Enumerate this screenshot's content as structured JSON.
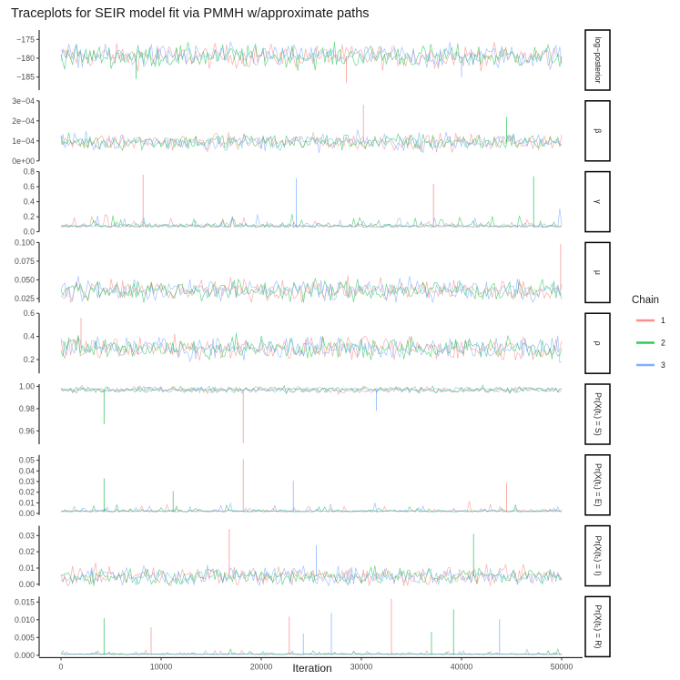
{
  "chart_data": {
    "type": "line",
    "title": "Traceplots for SEIR model fit via PMMH w/approximate paths",
    "xlabel": "Iteration",
    "x_range": [
      0,
      50000
    ],
    "x_ticks": [
      "0",
      "10000",
      "20000",
      "30000",
      "40000",
      "50000"
    ],
    "x_tick_values": [
      0,
      10000,
      20000,
      30000,
      40000,
      50000
    ],
    "grid": false,
    "legend": {
      "title": "Chain",
      "position": "right",
      "entries": [
        {
          "label": "1",
          "color": "#F8766D"
        },
        {
          "label": "2",
          "color": "#00BA38"
        },
        {
          "label": "3",
          "color": "#619CFF"
        }
      ]
    },
    "panels": [
      {
        "strip": "log−posterior",
        "ylim": [
          -188.5,
          -172.5
        ],
        "ticks": [
          -175,
          -180,
          -185
        ],
        "tick_labels": [
          "−175",
          "−180",
          "−185"
        ],
        "center": -179.5,
        "spread": 2.2,
        "spikes": [
          {
            "x": 28500,
            "y": -186.5
          },
          {
            "x": 7500,
            "y": -185.5
          },
          {
            "x": 40000,
            "y": -185
          }
        ]
      },
      {
        "strip": "β",
        "ylim": [
          0,
          0.0003
        ],
        "ticks": [
          0,
          0.0001,
          0.0002,
          0.0003
        ],
        "tick_labels": [
          "0e+00",
          "1e−04",
          "2e−04",
          "3e−04"
        ],
        "center": 9.5e-05,
        "spread": 3e-05,
        "spikes": [
          {
            "x": 30200,
            "y": 0.00028
          },
          {
            "x": 44500,
            "y": 0.00022
          }
        ]
      },
      {
        "strip": "γ",
        "ylim": [
          0,
          0.8
        ],
        "ticks": [
          0,
          0.2,
          0.4,
          0.6,
          0.8
        ],
        "tick_labels": [
          "0.0",
          "0.2",
          "0.4",
          "0.6",
          "0.8"
        ],
        "center": 0.06,
        "spread": 0.05,
        "spikes": [
          {
            "x": 8200,
            "y": 0.76
          },
          {
            "x": 47200,
            "y": 0.74
          },
          {
            "x": 23500,
            "y": 0.71
          },
          {
            "x": 37200,
            "y": 0.64
          }
        ]
      },
      {
        "strip": "μ",
        "ylim": [
          0.0195,
          0.1
        ],
        "ticks": [
          0.025,
          0.05,
          0.075,
          0.1
        ],
        "tick_labels": [
          "0.025",
          "0.050",
          "0.075",
          "0.100"
        ],
        "center": 0.036,
        "spread": 0.01,
        "spikes": [
          {
            "x": 49900,
            "y": 0.098
          }
        ]
      },
      {
        "strip": "ρ",
        "ylim": [
          0.08,
          0.6
        ],
        "ticks": [
          0.2,
          0.4,
          0.6
        ],
        "tick_labels": [
          "0.2",
          "0.4",
          "0.6"
        ],
        "center": 0.3,
        "spread": 0.07,
        "spikes": [
          {
            "x": 2000,
            "y": 0.56
          }
        ]
      },
      {
        "strip": "Pr(X(t₁) = S)",
        "ylim": [
          0.948,
          1.002
        ],
        "ticks": [
          0.96,
          0.98,
          1.0
        ],
        "tick_labels": [
          "0.96",
          "0.98",
          "1.00"
        ],
        "center": 0.997,
        "spread": 0.002,
        "spikes": [
          {
            "x": 18200,
            "y": 0.949
          },
          {
            "x": 4300,
            "y": 0.966
          },
          {
            "x": 31500,
            "y": 0.978
          }
        ]
      },
      {
        "strip": "Pr(X(t₁) = E)",
        "ylim": [
          -0.0015,
          0.055
        ],
        "ticks": [
          0,
          0.01,
          0.02,
          0.03,
          0.04,
          0.05
        ],
        "tick_labels": [
          "0.00",
          "0.01",
          "0.02",
          "0.03",
          "0.04",
          "0.05"
        ],
        "center": 0.0015,
        "spread": 0.002,
        "spikes": [
          {
            "x": 18200,
            "y": 0.051
          },
          {
            "x": 4300,
            "y": 0.033
          },
          {
            "x": 23200,
            "y": 0.031
          },
          {
            "x": 44500,
            "y": 0.029
          },
          {
            "x": 11200,
            "y": 0.021
          }
        ]
      },
      {
        "strip": "Pr(X(t₁) = I)",
        "ylim": [
          -0.001,
          0.036
        ],
        "ticks": [
          0,
          0.01,
          0.02,
          0.03
        ],
        "tick_labels": [
          "0.00",
          "0.01",
          "0.02",
          "0.03"
        ],
        "center": 0.005,
        "spread": 0.004,
        "spikes": [
          {
            "x": 16800,
            "y": 0.034
          },
          {
            "x": 41200,
            "y": 0.031
          },
          {
            "x": 25500,
            "y": 0.024
          }
        ]
      },
      {
        "strip": "Pr(X(t₁) = R)",
        "ylim": [
          -0.0004,
          0.0165
        ],
        "ticks": [
          0,
          0.005,
          0.01,
          0.015
        ],
        "tick_labels": [
          "0.000",
          "0.005",
          "0.010",
          "0.015"
        ],
        "center": 0.0002,
        "spread": 0.0003,
        "spikes": [
          {
            "x": 33000,
            "y": 0.0159
          },
          {
            "x": 39200,
            "y": 0.0129
          },
          {
            "x": 27000,
            "y": 0.0119
          },
          {
            "x": 22800,
            "y": 0.0109
          },
          {
            "x": 4300,
            "y": 0.0104
          },
          {
            "x": 43800,
            "y": 0.0102
          },
          {
            "x": 9000,
            "y": 0.0079
          },
          {
            "x": 37000,
            "y": 0.0066
          },
          {
            "x": 24200,
            "y": 0.0061
          }
        ]
      }
    ]
  }
}
